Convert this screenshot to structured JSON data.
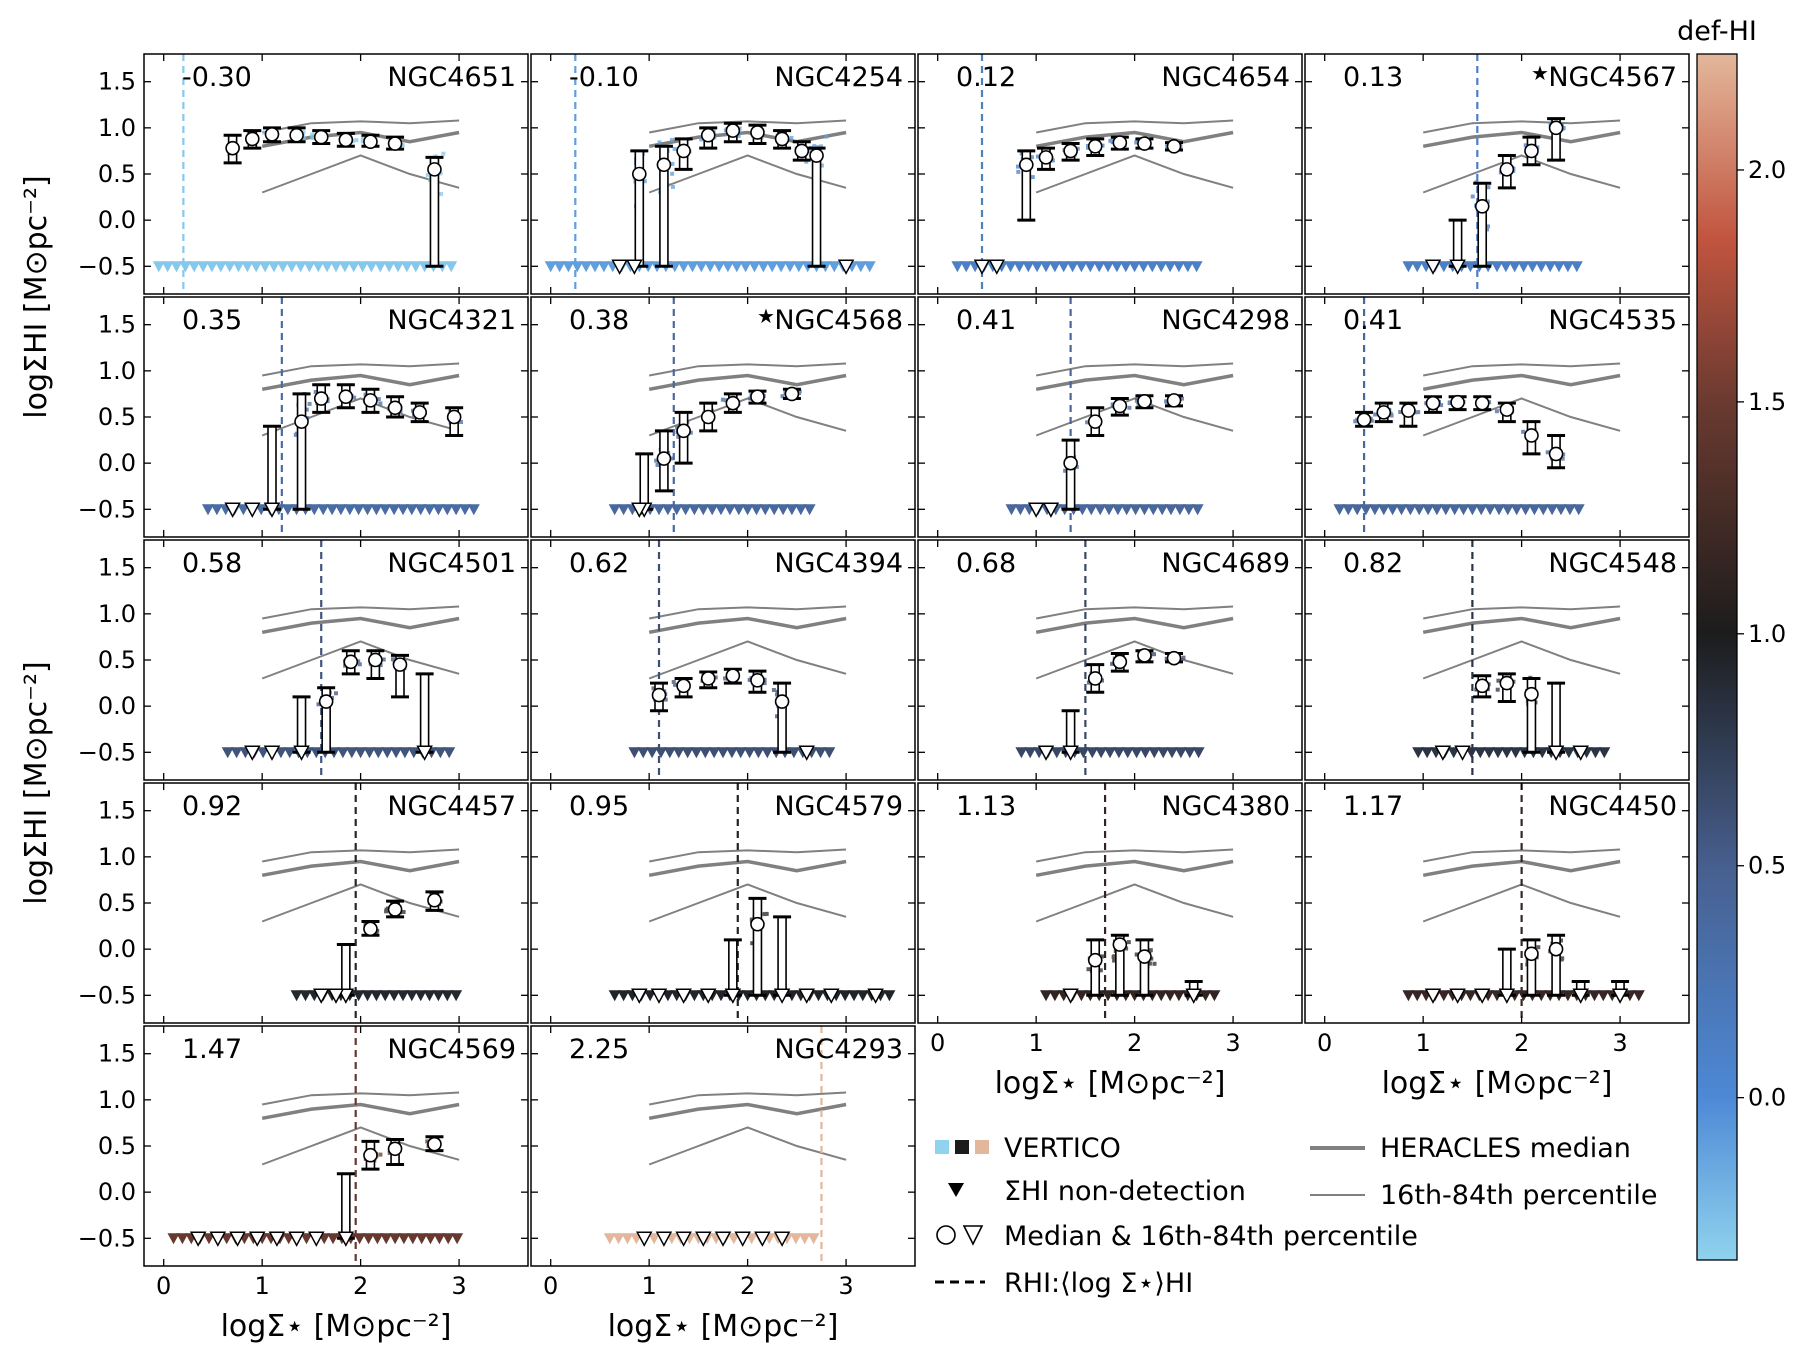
{
  "figure": {
    "colorbar": {
      "label": "def-HI",
      "ticks": [
        "0.0",
        "0.5",
        "1.0",
        "1.5",
        "2.0"
      ],
      "tick_values": [
        0.0,
        0.5,
        1.0,
        1.5,
        2.0
      ],
      "range": [
        -0.35,
        2.25
      ],
      "stops": [
        {
          "v": -0.35,
          "color": "#8fd3ee"
        },
        {
          "v": 0.0,
          "color": "#4d89d6"
        },
        {
          "v": 0.5,
          "color": "#475f8e"
        },
        {
          "v": 1.0,
          "color": "#1c1c1c"
        },
        {
          "v": 1.5,
          "color": "#6b3a30"
        },
        {
          "v": 1.85,
          "color": "#c1543f"
        },
        {
          "v": 2.25,
          "color": "#e3b79b"
        }
      ]
    },
    "axes": {
      "xlabel": "logΣ⋆ [M⊙pc⁻²]",
      "ylabel": "logΣHI [M⊙pc⁻²]",
      "xlim": [
        -0.2,
        3.7
      ],
      "ylim": [
        -0.8,
        1.8
      ],
      "xticks": [
        0,
        1,
        2,
        3
      ],
      "yticks": [
        -0.5,
        0.0,
        0.5,
        1.0,
        1.5
      ],
      "ytick_labels": [
        "−0.5",
        "0.0",
        "0.5",
        "1.0",
        "1.5"
      ],
      "xtick_labels": [
        "0",
        "1",
        "2",
        "3"
      ]
    },
    "legend": {
      "vertico": "VERTICO",
      "nondetection": "ΣHI non-detection",
      "median": "Median & 16th-84th percentile",
      "rhi": "RHI:⟨log Σ⋆⟩HI",
      "heracles_median": "HERACLES median",
      "heracles_pct": "16th-84th percentile"
    }
  },
  "chart_data": {
    "type": "scatter",
    "heracles": {
      "x": [
        1.0,
        1.5,
        2.0,
        2.5,
        3.0
      ],
      "upper": [
        0.95,
        1.05,
        1.07,
        1.05,
        1.08
      ],
      "median": [
        0.8,
        0.9,
        0.95,
        0.85,
        0.95
      ],
      "lower": [
        0.3,
        0.5,
        0.7,
        0.5,
        0.35
      ]
    },
    "panels": [
      {
        "name": "NGC4651",
        "def": "-0.30",
        "defv": -0.3,
        "star": false,
        "rline": 0.2,
        "medians": [
          [
            0.7,
            0.78,
            0.62,
            0.92
          ],
          [
            0.9,
            0.88,
            0.78,
            0.97
          ],
          [
            1.1,
            0.93,
            0.85,
            1.0
          ],
          [
            1.35,
            0.92,
            0.85,
            1.0
          ],
          [
            1.6,
            0.9,
            0.83,
            0.97
          ],
          [
            1.85,
            0.87,
            0.8,
            0.94
          ],
          [
            2.1,
            0.85,
            0.8,
            0.92
          ],
          [
            2.35,
            0.83,
            0.77,
            0.9
          ],
          [
            2.75,
            0.55,
            -0.5,
            0.68
          ]
        ],
        "open_tri": []
      },
      {
        "name": "NGC4254",
        "def": "-0.10",
        "defv": -0.1,
        "star": false,
        "rline": 0.25,
        "medians": [
          [
            0.9,
            0.5,
            -0.5,
            0.75
          ],
          [
            1.15,
            0.6,
            -0.5,
            0.8
          ],
          [
            1.35,
            0.75,
            0.55,
            0.88
          ],
          [
            1.6,
            0.92,
            0.78,
            1.0
          ],
          [
            1.85,
            0.97,
            0.85,
            1.05
          ],
          [
            2.1,
            0.95,
            0.83,
            1.03
          ],
          [
            2.35,
            0.88,
            0.78,
            0.97
          ],
          [
            2.55,
            0.75,
            0.65,
            0.85
          ],
          [
            2.7,
            0.7,
            -0.5,
            0.78
          ]
        ],
        "open_tri": [
          0.7,
          0.85,
          3.0
        ]
      },
      {
        "name": "NGC4654",
        "def": "0.12",
        "defv": 0.12,
        "star": false,
        "rline": 0.45,
        "medians": [
          [
            0.9,
            0.6,
            0.0,
            0.75
          ],
          [
            1.1,
            0.68,
            0.55,
            0.78
          ],
          [
            1.35,
            0.75,
            0.65,
            0.83
          ],
          [
            1.6,
            0.8,
            0.7,
            0.88
          ],
          [
            1.85,
            0.84,
            0.77,
            0.9
          ],
          [
            2.1,
            0.83,
            0.78,
            0.88
          ],
          [
            2.4,
            0.8,
            0.76,
            0.84
          ]
        ],
        "open_tri": [
          0.45,
          0.6
        ]
      },
      {
        "name": "NGC4567",
        "def": "0.13",
        "defv": 0.13,
        "star": true,
        "rline": 1.55,
        "medians": [
          [
            1.35,
            -0.45,
            -0.5,
            0.0
          ],
          [
            1.6,
            0.15,
            -0.5,
            0.4
          ],
          [
            1.85,
            0.55,
            0.35,
            0.7
          ],
          [
            2.1,
            0.75,
            0.6,
            0.9
          ],
          [
            2.35,
            1.0,
            0.65,
            1.1
          ]
        ],
        "open_tri": [
          1.1
        ]
      },
      {
        "name": "NGC4321",
        "def": "0.35",
        "defv": 0.35,
        "star": false,
        "rline": 1.2,
        "medians": [
          [
            1.1,
            -0.5,
            -0.5,
            0.4
          ],
          [
            1.4,
            0.45,
            -0.5,
            0.75
          ],
          [
            1.6,
            0.7,
            0.55,
            0.85
          ],
          [
            1.85,
            0.72,
            0.6,
            0.85
          ],
          [
            2.1,
            0.68,
            0.55,
            0.8
          ],
          [
            2.35,
            0.6,
            0.5,
            0.72
          ],
          [
            2.6,
            0.55,
            0.45,
            0.65
          ],
          [
            2.95,
            0.5,
            0.3,
            0.6
          ]
        ],
        "open_tri": [
          0.7,
          0.9
        ]
      },
      {
        "name": "NGC4568",
        "def": "0.38",
        "defv": 0.38,
        "star": true,
        "rline": 1.25,
        "medians": [
          [
            0.95,
            -0.5,
            -0.5,
            0.1
          ],
          [
            1.15,
            0.05,
            -0.3,
            0.35
          ],
          [
            1.35,
            0.35,
            0.0,
            0.55
          ],
          [
            1.6,
            0.5,
            0.35,
            0.65
          ],
          [
            1.85,
            0.65,
            0.55,
            0.75
          ],
          [
            2.1,
            0.72,
            0.65,
            0.78
          ],
          [
            2.45,
            0.75,
            0.7,
            0.8
          ]
        ],
        "open_tri": [
          0.9
        ]
      },
      {
        "name": "NGC4298",
        "def": "0.41",
        "defv": 0.41,
        "star": false,
        "rline": 1.35,
        "medians": [
          [
            1.35,
            0.0,
            -0.5,
            0.25
          ],
          [
            1.6,
            0.45,
            0.3,
            0.6
          ],
          [
            1.85,
            0.62,
            0.52,
            0.7
          ],
          [
            2.1,
            0.67,
            0.6,
            0.73
          ],
          [
            2.4,
            0.68,
            0.62,
            0.73
          ]
        ],
        "open_tri": [
          1.0,
          1.15
        ]
      },
      {
        "name": "NGC4535",
        "def": "0.41",
        "defv": 0.41,
        "star": false,
        "rline": 0.4,
        "medians": [
          [
            0.4,
            0.47,
            0.4,
            0.55
          ],
          [
            0.6,
            0.55,
            0.45,
            0.65
          ],
          [
            0.85,
            0.57,
            0.4,
            0.65
          ],
          [
            1.1,
            0.65,
            0.55,
            0.72
          ],
          [
            1.35,
            0.66,
            0.58,
            0.72
          ],
          [
            1.6,
            0.65,
            0.58,
            0.72
          ],
          [
            1.85,
            0.58,
            0.45,
            0.65
          ],
          [
            2.1,
            0.3,
            0.1,
            0.45
          ],
          [
            2.35,
            0.1,
            -0.05,
            0.3
          ]
        ],
        "open_tri": []
      },
      {
        "name": "NGC4501",
        "def": "0.58",
        "defv": 0.58,
        "star": false,
        "rline": 1.6,
        "medians": [
          [
            1.4,
            -0.5,
            -0.5,
            0.1
          ],
          [
            1.65,
            0.05,
            -0.5,
            0.2
          ],
          [
            1.9,
            0.48,
            0.35,
            0.6
          ],
          [
            2.15,
            0.5,
            0.3,
            0.6
          ],
          [
            2.4,
            0.45,
            0.1,
            0.55
          ],
          [
            2.65,
            -0.5,
            -0.5,
            0.35
          ]
        ],
        "open_tri": [
          0.9,
          1.1
        ]
      },
      {
        "name": "NGC4394",
        "def": "0.62",
        "defv": 0.62,
        "star": false,
        "rline": 1.1,
        "medians": [
          [
            1.1,
            0.12,
            -0.05,
            0.25
          ],
          [
            1.35,
            0.22,
            0.1,
            0.3
          ],
          [
            1.6,
            0.3,
            0.2,
            0.37
          ],
          [
            1.85,
            0.33,
            0.25,
            0.4
          ],
          [
            2.1,
            0.28,
            0.15,
            0.38
          ],
          [
            2.35,
            0.05,
            -0.5,
            0.25
          ]
        ],
        "open_tri": [
          2.6
        ]
      },
      {
        "name": "NGC4689",
        "def": "0.68",
        "defv": 0.68,
        "star": false,
        "rline": 1.5,
        "medians": [
          [
            1.35,
            -0.5,
            -0.5,
            -0.05
          ],
          [
            1.6,
            0.3,
            0.15,
            0.45
          ],
          [
            1.85,
            0.48,
            0.38,
            0.57
          ],
          [
            2.1,
            0.55,
            0.48,
            0.6
          ],
          [
            2.4,
            0.52,
            0.48,
            0.57
          ]
        ],
        "open_tri": [
          1.1
        ]
      },
      {
        "name": "NGC4548",
        "def": "0.82",
        "defv": 0.82,
        "star": false,
        "rline": 1.5,
        "medians": [
          [
            1.6,
            0.22,
            0.1,
            0.33
          ],
          [
            1.85,
            0.25,
            0.05,
            0.35
          ],
          [
            2.1,
            0.13,
            -0.5,
            0.3
          ],
          [
            2.35,
            -0.5,
            -0.5,
            0.25
          ]
        ],
        "open_tri": [
          1.2,
          1.4,
          2.6
        ]
      },
      {
        "name": "NGC4457",
        "def": "0.92",
        "defv": 0.92,
        "star": false,
        "rline": 1.95,
        "medians": [
          [
            1.85,
            -0.5,
            -0.5,
            0.05
          ],
          [
            2.1,
            0.22,
            0.15,
            0.3
          ],
          [
            2.35,
            0.43,
            0.35,
            0.52
          ],
          [
            2.75,
            0.53,
            0.42,
            0.62
          ]
        ],
        "open_tri": [
          1.6,
          1.75
        ]
      },
      {
        "name": "NGC4579",
        "def": "0.95",
        "defv": 0.95,
        "star": false,
        "rline": 1.9,
        "medians": [
          [
            1.85,
            -0.5,
            -0.5,
            0.1
          ],
          [
            2.1,
            0.27,
            -0.5,
            0.55
          ],
          [
            2.35,
            -0.5,
            -0.5,
            0.35
          ]
        ],
        "open_tri": [
          0.9,
          1.1,
          1.35,
          1.6,
          2.6,
          2.85,
          3.3
        ]
      },
      {
        "name": "NGC4380",
        "def": "1.13",
        "defv": 1.13,
        "star": false,
        "rline": 1.7,
        "medians": [
          [
            1.6,
            -0.12,
            -0.5,
            0.1
          ],
          [
            1.85,
            0.05,
            -0.5,
            0.15
          ],
          [
            2.1,
            -0.08,
            -0.5,
            0.1
          ],
          [
            2.6,
            -0.45,
            -0.5,
            -0.35
          ]
        ],
        "open_tri": [
          1.35
        ]
      },
      {
        "name": "NGC4450",
        "def": "1.17",
        "defv": 1.17,
        "star": false,
        "rline": 2.0,
        "medians": [
          [
            1.85,
            -0.5,
            -0.5,
            0.0
          ],
          [
            2.1,
            -0.05,
            -0.5,
            0.1
          ],
          [
            2.35,
            0.0,
            -0.5,
            0.15
          ],
          [
            2.6,
            -0.5,
            -0.5,
            -0.35
          ],
          [
            3.0,
            -0.45,
            -0.5,
            -0.35
          ]
        ],
        "open_tri": [
          1.1,
          1.35,
          1.6
        ]
      },
      {
        "name": "NGC4569",
        "def": "1.47",
        "defv": 1.47,
        "star": false,
        "rline": 1.95,
        "medians": [
          [
            1.85,
            -0.5,
            -0.5,
            0.2
          ],
          [
            2.1,
            0.4,
            0.25,
            0.55
          ],
          [
            2.35,
            0.47,
            0.3,
            0.57
          ],
          [
            2.75,
            0.52,
            0.45,
            0.6
          ]
        ],
        "open_tri": [
          0.35,
          0.55,
          0.75,
          0.95,
          1.15,
          1.35,
          1.55
        ]
      },
      {
        "name": "NGC4293",
        "def": "2.25",
        "defv": 2.25,
        "star": false,
        "rline": 2.75,
        "medians": [],
        "open_tri": [
          0.95,
          1.15,
          1.35,
          1.55,
          1.75,
          1.95,
          2.15,
          2.35
        ]
      }
    ]
  }
}
